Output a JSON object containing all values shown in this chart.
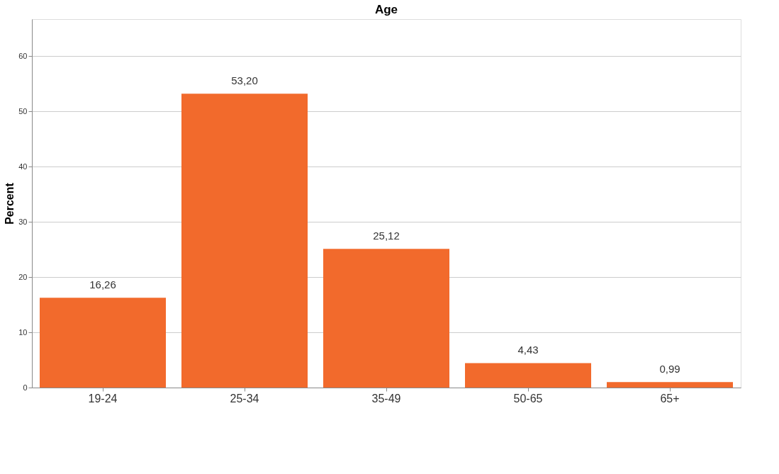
{
  "chart_data": {
    "type": "bar",
    "title": "Age",
    "ylabel": "Percent",
    "categories": [
      "19-24",
      "25-34",
      "35-49",
      "50-65",
      "65+"
    ],
    "values": [
      16.26,
      53.2,
      25.12,
      4.43,
      0.99
    ],
    "value_labels": [
      "16,26",
      "53,20",
      "25,12",
      "4,43",
      "0,99"
    ],
    "color": "#f26a2c",
    "ylim": [
      0,
      66.7
    ],
    "yticks": [
      0,
      10,
      20,
      30,
      40,
      50,
      60
    ],
    "grid": "y"
  }
}
